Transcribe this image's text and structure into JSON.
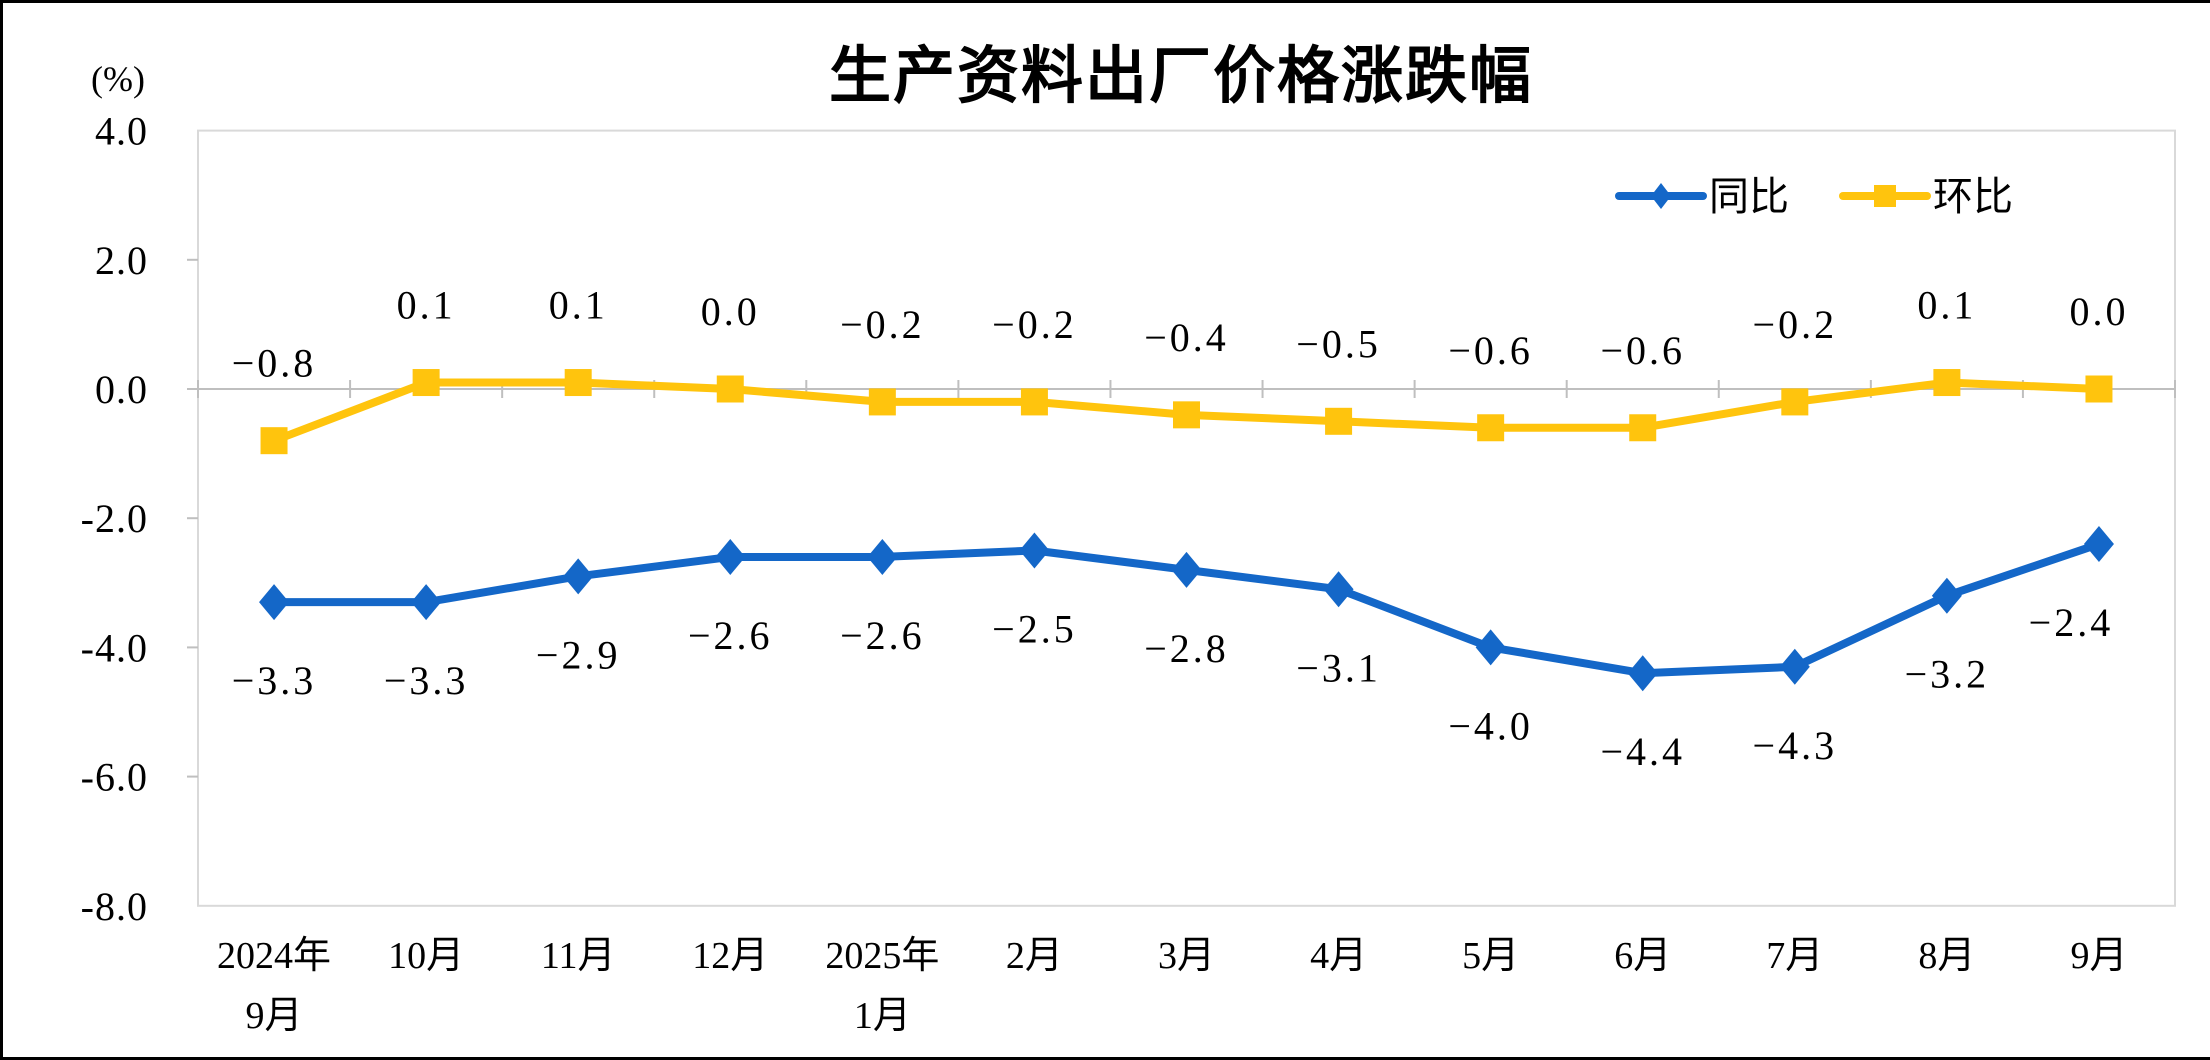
{
  "page": {
    "background": "#ffffff",
    "screenshot_border_color": "#000000"
  },
  "chart_data": {
    "type": "line",
    "title": "生产资料出厂价格涨跌幅",
    "unit_label": "(%)",
    "grid": "off",
    "legend_position": "top-right-inside",
    "axis_color": "#BFBFBF",
    "plot_border_color": "#D9D9D9",
    "label_color": "#000000",
    "categories_line1": [
      "2024年",
      "10月",
      "11月",
      "12月",
      "2025年",
      "2月",
      "3月",
      "4月",
      "5月",
      "6月",
      "7月",
      "8月",
      "9月"
    ],
    "categories_line2": [
      "9月",
      "",
      "",
      "",
      "1月",
      "",
      "",
      "",
      "",
      "",
      "",
      "",
      ""
    ],
    "y_axis": {
      "min": -8.0,
      "max": 4.0,
      "tick_labels": [
        "4.0",
        "2.0",
        "0.0",
        "-2.0",
        "-4.0",
        "-6.0",
        "-8.0"
      ],
      "tick_values": [
        4.0,
        2.0,
        0.0,
        -2.0,
        -4.0,
        -6.0,
        -8.0
      ]
    },
    "series": [
      {
        "name": "同比",
        "color": "#1467C8",
        "marker": "diamond",
        "label_position": "below",
        "values": [
          -3.3,
          -3.3,
          -2.9,
          -2.6,
          -2.6,
          -2.5,
          -2.8,
          -3.1,
          -4.0,
          -4.4,
          -4.3,
          -3.2,
          -2.4
        ],
        "labels": [
          "-3.3",
          "-3.3",
          "-2.9",
          "-2.6",
          "-2.6",
          "-2.5",
          "-2.8",
          "-3.1",
          "-4.0",
          "-4.4",
          "-4.3",
          "-3.2",
          "-2.4"
        ],
        "label_dx": [
          0,
          0,
          0,
          0,
          0,
          0,
          0,
          0,
          0,
          0,
          0,
          0,
          -28
        ]
      },
      {
        "name": "环比",
        "color": "#FFC40D",
        "marker": "square",
        "label_position": "above",
        "values": [
          -0.8,
          0.1,
          0.1,
          0.0,
          -0.2,
          -0.2,
          -0.4,
          -0.5,
          -0.6,
          -0.6,
          -0.2,
          0.1,
          0.0
        ],
        "labels": [
          "-0.8",
          "0.1",
          "0.1",
          "0.0",
          "-0.2",
          "-0.2",
          "-0.4",
          "-0.5",
          "-0.6",
          "-0.6",
          "-0.2",
          "0.1",
          "0.0"
        ],
        "label_dx": [
          0,
          0,
          0,
          0,
          0,
          0,
          0,
          0,
          0,
          0,
          0,
          0,
          0
        ]
      }
    ],
    "legend_entries": [
      {
        "label": "同比",
        "color": "#1467C8",
        "marker": "diamond"
      },
      {
        "label": "环比",
        "color": "#FFC40D",
        "marker": "square"
      }
    ]
  }
}
